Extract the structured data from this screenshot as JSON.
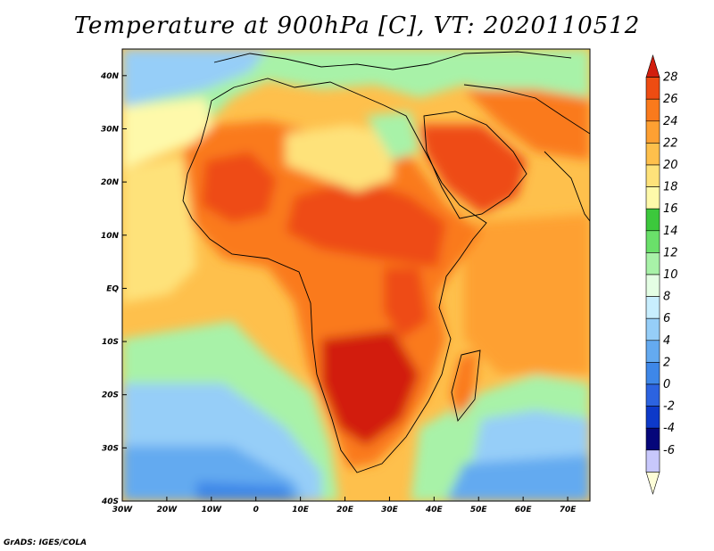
{
  "title": "Temperature at 900hPa [C], VT: 2020110512",
  "credit": "GrADS: IGES/COLA",
  "map": {
    "lon_range": [
      -30,
      75
    ],
    "lat_range": [
      -40,
      45
    ],
    "lat_labels": [
      {
        "lat": 40,
        "label": "40N"
      },
      {
        "lat": 30,
        "label": "30N"
      },
      {
        "lat": 20,
        "label": "20N"
      },
      {
        "lat": 10,
        "label": "10N"
      },
      {
        "lat": 0,
        "label": "EQ"
      },
      {
        "lat": -10,
        "label": "10S"
      },
      {
        "lat": -20,
        "label": "20S"
      },
      {
        "lat": -30,
        "label": "30S"
      },
      {
        "lat": -40,
        "label": "40S"
      }
    ],
    "lon_labels": [
      {
        "lon": -30,
        "label": "30W"
      },
      {
        "lon": -20,
        "label": "20W"
      },
      {
        "lon": -10,
        "label": "10W"
      },
      {
        "lon": 0,
        "label": "0"
      },
      {
        "lon": 10,
        "label": "10E"
      },
      {
        "lon": 20,
        "label": "20E"
      },
      {
        "lon": 30,
        "label": "30E"
      },
      {
        "lon": 40,
        "label": "40E"
      },
      {
        "lon": 50,
        "label": "50E"
      },
      {
        "lon": 60,
        "label": "60E"
      },
      {
        "lon": 70,
        "label": "70E"
      }
    ]
  },
  "colorbar": {
    "levels": [
      "28",
      "26",
      "24",
      "22",
      "20",
      "18",
      "16",
      "14",
      "12",
      "10",
      "8",
      "6",
      "4",
      "2",
      "0",
      "-2",
      "-4",
      "-6"
    ],
    "colors": [
      "#fefed8",
      "#c8c8fc",
      "#05067a",
      "#0d39c9",
      "#2c63e0",
      "#3e87e8",
      "#64aaf0",
      "#96cef8",
      "#c8eefe",
      "#e4fee4",
      "#a8f2a8",
      "#6ae06a",
      "#3cc83c",
      "#fef9aa",
      "#fee27a",
      "#fec04c",
      "#fea032",
      "#fa7a1c",
      "#ee4c12",
      "#d21e0e"
    ]
  }
}
